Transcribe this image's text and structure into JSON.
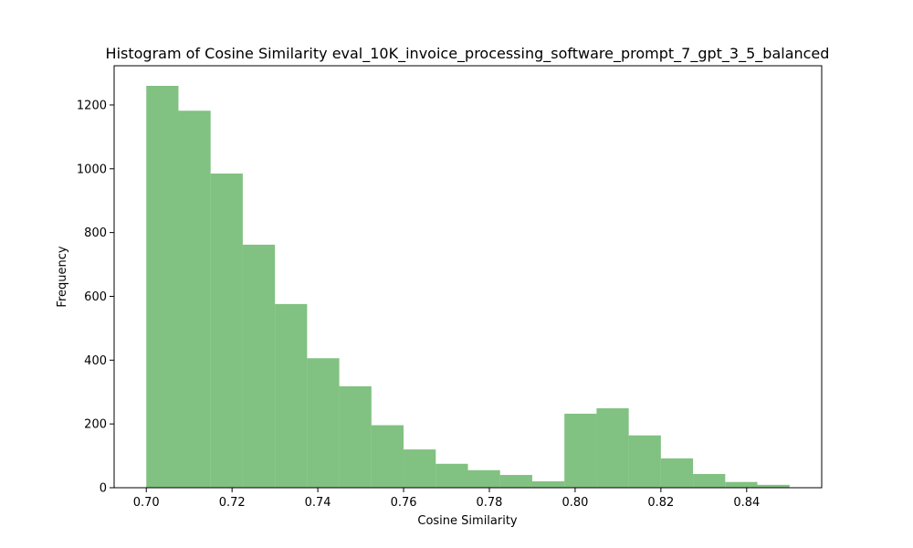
{
  "chart_data": {
    "type": "bar",
    "subtype": "histogram",
    "title": "Histogram of Cosine Similarity eval_10K_invoice_processing_software_prompt_7_gpt_3_5_balanced",
    "xlabel": "Cosine Similarity",
    "ylabel": "Frequency",
    "bin_edges": [
      0.7,
      0.7075,
      0.715,
      0.7225,
      0.73,
      0.7375,
      0.745,
      0.7525,
      0.76,
      0.7675,
      0.775,
      0.7825,
      0.79,
      0.7975,
      0.805,
      0.8125,
      0.82,
      0.8275,
      0.835,
      0.8425,
      0.85
    ],
    "values": [
      1260,
      1182,
      985,
      762,
      576,
      406,
      318,
      196,
      120,
      75,
      55,
      40,
      20,
      232,
      249,
      164,
      92,
      43,
      18,
      9
    ],
    "xlim": [
      0.6925,
      0.8575
    ],
    "ylim": [
      0,
      1323
    ],
    "x_ticks": [
      "0.70",
      "0.72",
      "0.74",
      "0.76",
      "0.78",
      "0.80",
      "0.82",
      "0.84"
    ],
    "x_tick_values": [
      0.7,
      0.72,
      0.74,
      0.76,
      0.78,
      0.8,
      0.82,
      0.84
    ],
    "y_ticks": [
      "0",
      "200",
      "400",
      "600",
      "800",
      "1000",
      "1200"
    ],
    "y_tick_values": [
      0,
      200,
      400,
      600,
      800,
      1000,
      1200
    ],
    "bar_color": "#4ca64c",
    "bar_opacity": 0.7,
    "grid": false,
    "legend": "none"
  }
}
